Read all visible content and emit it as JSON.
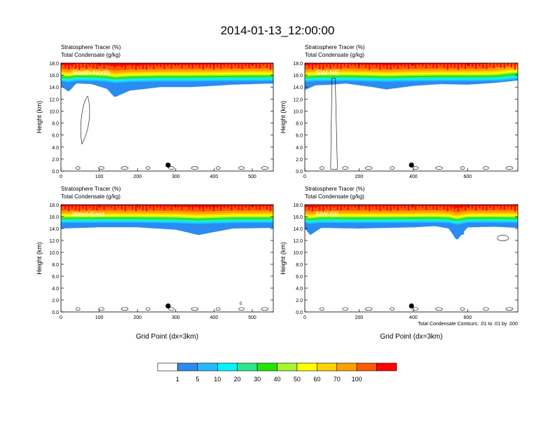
{
  "title": "2014-01-13_12:00:00",
  "footnote": "Total Condensate Contours: .01 to .01 by .000",
  "colors": {
    "levels": [
      "#ffffff",
      "#2a8cf0",
      "#2ab9ff",
      "#00f5ff",
      "#2ee68c",
      "#22e600",
      "#a6f52e",
      "#ffff00",
      "#ffd200",
      "#ffa000",
      "#ff5a00",
      "#ff0000"
    ]
  },
  "colorbar": {
    "labels": [
      "1",
      "5",
      "10",
      "20",
      "30",
      "40",
      "50",
      "60",
      "70",
      "100"
    ]
  },
  "chart_data": [
    {
      "type": "contour",
      "name": "South-North",
      "subtitle1": "Stratosphere Tracer   (%)",
      "subtitle2": "Total Condensate   (g/kg)",
      "ylabel": "Height (km)",
      "xlabel": "",
      "ylim": [
        0,
        18
      ],
      "xlim": [
        0,
        555
      ],
      "yticks": [
        "0.0",
        "2.0",
        "4.0",
        "6.0",
        "8.0",
        "10.0",
        "12.0",
        "14.0",
        "16.0",
        "18.0"
      ],
      "xticks": [
        {
          "v": 0,
          "l": "0"
        },
        {
          "v": 100,
          "l": "100"
        },
        {
          "v": 200,
          "l": "200"
        },
        {
          "v": 300,
          "l": "300"
        },
        {
          "v": 400,
          "l": "400"
        },
        {
          "v": 500,
          "l": "500"
        }
      ],
      "marker": {
        "x": 280,
        "y": 1.0
      },
      "tracer_base_profile": [
        [
          0,
          14.2
        ],
        [
          20,
          13.2
        ],
        [
          40,
          14.6
        ],
        [
          80,
          14.5
        ],
        [
          120,
          13.7
        ],
        [
          140,
          12.3
        ],
        [
          180,
          13.4
        ],
        [
          260,
          14.0
        ],
        [
          340,
          14.0
        ],
        [
          400,
          14.2
        ],
        [
          450,
          14.4
        ],
        [
          555,
          14.6
        ]
      ]
    },
    {
      "type": "contour",
      "name": "SW-NE",
      "subtitle1": "Stratosphere Tracer   (%)",
      "subtitle2": "Total Condensate   (g/kg)",
      "ylabel": "Height (km)",
      "xlabel": "",
      "ylim": [
        0,
        18
      ],
      "xlim": [
        0,
        785
      ],
      "yticks": [
        "0.0",
        "2.0",
        "4.0",
        "6.0",
        "8.0",
        "10.0",
        "12.0",
        "14.0",
        "16.0",
        "18.0"
      ],
      "xticks": [
        {
          "v": 0,
          "l": "0"
        },
        {
          "v": 200,
          "l": "200"
        },
        {
          "v": 400,
          "l": "400"
        },
        {
          "v": 600,
          "l": "600"
        }
      ],
      "marker": {
        "x": 393,
        "y": 1.0
      },
      "tracer_base_profile": [
        [
          0,
          13.5
        ],
        [
          40,
          14.3
        ],
        [
          100,
          14.4
        ],
        [
          150,
          14.6
        ],
        [
          250,
          14.0
        ],
        [
          300,
          13.6
        ],
        [
          400,
          14.2
        ],
        [
          500,
          14.5
        ],
        [
          600,
          14.4
        ],
        [
          700,
          14.7
        ],
        [
          785,
          15.1
        ]
      ]
    },
    {
      "type": "contour",
      "name": "West-East",
      "subtitle1": "Stratosphere Tracer   (%)",
      "subtitle2": "Total Condensate   (g/kg)",
      "ylabel": "Height (km)",
      "xlabel": "Grid Point (dx=3km)",
      "ylim": [
        0,
        18
      ],
      "xlim": [
        0,
        555
      ],
      "yticks": [
        "0.0",
        "2.0",
        "4.0",
        "6.0",
        "8.0",
        "10.0",
        "12.0",
        "14.0",
        "16.0",
        "18.0"
      ],
      "xticks": [
        {
          "v": 0,
          "l": "0"
        },
        {
          "v": 100,
          "l": "100"
        },
        {
          "v": 200,
          "l": "200"
        },
        {
          "v": 300,
          "l": "300"
        },
        {
          "v": 400,
          "l": "400"
        },
        {
          "v": 500,
          "l": "500"
        }
      ],
      "marker": {
        "x": 280,
        "y": 1.0
      },
      "contour_label": "0",
      "tracer_base_profile": [
        [
          0,
          14.0
        ],
        [
          100,
          14.2
        ],
        [
          200,
          14.2
        ],
        [
          300,
          13.8
        ],
        [
          360,
          12.9
        ],
        [
          400,
          13.4
        ],
        [
          450,
          14.0
        ],
        [
          555,
          14.1
        ]
      ]
    },
    {
      "type": "contour",
      "name": "NW-SE",
      "subtitle1": "Stratosphere Tracer   (%)",
      "subtitle2": "Total Condensate   (g/kg)",
      "ylabel": "Height (km)",
      "xlabel": "Grid Point (dx=3km)",
      "ylim": [
        0,
        18
      ],
      "xlim": [
        0,
        785
      ],
      "yticks": [
        "0.0",
        "2.0",
        "4.0",
        "6.0",
        "8.0",
        "10.0",
        "12.0",
        "14.0",
        "16.0",
        "18.0"
      ],
      "xticks": [
        {
          "v": 0,
          "l": "0"
        },
        {
          "v": 200,
          "l": "200"
        },
        {
          "v": 400,
          "l": "400"
        },
        {
          "v": 600,
          "l": "600"
        }
      ],
      "marker": {
        "x": 393,
        "y": 1.0
      },
      "tracer_base_profile": [
        [
          0,
          14.0
        ],
        [
          20,
          12.9
        ],
        [
          60,
          14.1
        ],
        [
          200,
          14.0
        ],
        [
          400,
          14.2
        ],
        [
          480,
          14.4
        ],
        [
          530,
          14.0
        ],
        [
          560,
          12.0
        ],
        [
          600,
          14.2
        ],
        [
          700,
          14.3
        ],
        [
          785,
          14.1
        ]
      ]
    }
  ]
}
